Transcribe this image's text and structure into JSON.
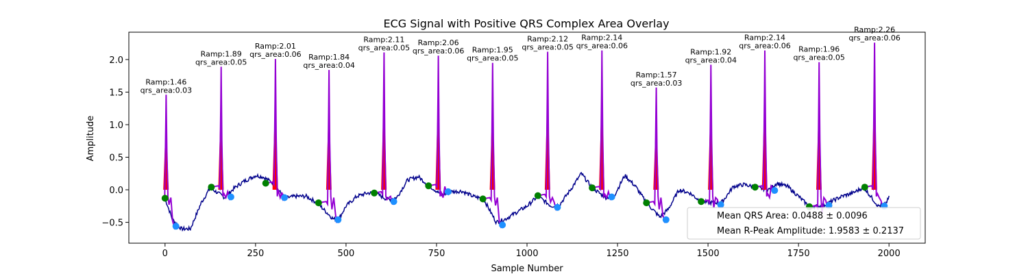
{
  "chart_data": {
    "type": "line",
    "title": "ECG Signal with Positive QRS Complex Area Overlay",
    "xlabel": "Sample Number",
    "ylabel": "Amplitude",
    "xlim": [
      -100,
      2100
    ],
    "ylim": [
      -0.82,
      2.42
    ],
    "x_ticks": [
      0,
      250,
      500,
      750,
      1000,
      1250,
      1500,
      1750,
      2000
    ],
    "y_ticks": [
      -0.5,
      0.0,
      0.5,
      1.0,
      1.5,
      2.0
    ],
    "x_tick_labels": [
      "0",
      "250",
      "500",
      "750",
      "1000",
      "1250",
      "1500",
      "1750",
      "2000"
    ],
    "y_tick_labels": [
      "−0.5",
      "0.0",
      "0.5",
      "1.0",
      "1.5",
      "2.0"
    ],
    "grid": false,
    "legend_position": "lower-right",
    "colors": {
      "signal": "#00008b",
      "qrs_segment": "#9400d3",
      "qrs_area_fill": "#ff0000",
      "onset_marker": "#008000",
      "offset_marker": "#1e90ff"
    },
    "beats": [
      {
        "r_x": 3,
        "r_amp": 1.46,
        "qrs_area": 0.03,
        "onset": [
          0,
          -0.13
        ],
        "offset": [
          30,
          -0.56
        ],
        "amp_label": "Ramp:1.46",
        "area_label": "qrs_area:0.03"
      },
      {
        "r_x": 155,
        "r_amp": 1.89,
        "qrs_area": 0.05,
        "onset": [
          128,
          0.04
        ],
        "offset": [
          182,
          -0.11
        ],
        "amp_label": "Ramp:1.89",
        "area_label": "qrs_area:0.05"
      },
      {
        "r_x": 305,
        "r_amp": 2.01,
        "qrs_area": 0.06,
        "onset": [
          278,
          0.1
        ],
        "offset": [
          330,
          -0.12
        ],
        "amp_label": "Ramp:2.01",
        "area_label": "qrs_area:0.06"
      },
      {
        "r_x": 453,
        "r_amp": 1.84,
        "qrs_area": 0.04,
        "onset": [
          424,
          -0.2
        ],
        "offset": [
          478,
          -0.46
        ],
        "amp_label": "Ramp:1.84",
        "area_label": "qrs_area:0.04"
      },
      {
        "r_x": 605,
        "r_amp": 2.11,
        "qrs_area": 0.05,
        "onset": [
          578,
          -0.05
        ],
        "offset": [
          632,
          -0.18
        ],
        "amp_label": "Ramp:2.11",
        "area_label": "qrs_area:0.05"
      },
      {
        "r_x": 755,
        "r_amp": 2.06,
        "qrs_area": 0.06,
        "onset": [
          728,
          0.06
        ],
        "offset": [
          782,
          -0.03
        ],
        "amp_label": "Ramp:2.06",
        "area_label": "qrs_area:0.06"
      },
      {
        "r_x": 905,
        "r_amp": 1.95,
        "qrs_area": 0.05,
        "onset": [
          878,
          -0.14
        ],
        "offset": [
          932,
          -0.54
        ],
        "amp_label": "Ramp:1.95",
        "area_label": "qrs_area:0.05"
      },
      {
        "r_x": 1057,
        "r_amp": 2.12,
        "qrs_area": 0.05,
        "onset": [
          1030,
          -0.09
        ],
        "offset": [
          1084,
          -0.27
        ],
        "amp_label": "Ramp:2.12",
        "area_label": "qrs_area:0.05"
      },
      {
        "r_x": 1207,
        "r_amp": 2.14,
        "qrs_area": 0.06,
        "onset": [
          1180,
          0.03
        ],
        "offset": [
          1234,
          -0.11
        ],
        "amp_label": "Ramp:2.14",
        "area_label": "qrs_area:0.06"
      },
      {
        "r_x": 1357,
        "r_amp": 1.57,
        "qrs_area": 0.03,
        "onset": [
          1330,
          -0.2
        ],
        "offset": [
          1384,
          -0.46
        ],
        "amp_label": "Ramp:1.57",
        "area_label": "qrs_area:0.03"
      },
      {
        "r_x": 1508,
        "r_amp": 1.92,
        "qrs_area": 0.04,
        "onset": [
          1481,
          -0.18
        ],
        "offset": [
          1535,
          -0.23
        ],
        "amp_label": "Ramp:1.92",
        "area_label": "qrs_area:0.04"
      },
      {
        "r_x": 1657,
        "r_amp": 2.14,
        "qrs_area": 0.06,
        "onset": [
          1630,
          0.04
        ],
        "offset": [
          1684,
          -0.01
        ],
        "amp_label": "Ramp:2.14",
        "area_label": "qrs_area:0.06"
      },
      {
        "r_x": 1807,
        "r_amp": 1.96,
        "qrs_area": 0.05,
        "onset": [
          1780,
          -0.26
        ],
        "offset": [
          1834,
          -0.24
        ],
        "amp_label": "Ramp:1.96",
        "area_label": "qrs_area:0.05"
      },
      {
        "r_x": 1960,
        "r_amp": 2.26,
        "qrs_area": 0.06,
        "onset": [
          1933,
          0.04
        ],
        "offset": [
          1987,
          -0.25
        ],
        "amp_label": "Ramp:2.26",
        "area_label": "qrs_area:0.06"
      }
    ],
    "baseline_x": [
      0,
      20,
      45,
      70,
      100,
      125,
      165,
      190,
      215,
      250,
      270,
      300,
      330,
      360,
      390,
      420,
      465,
      480,
      500,
      530,
      560,
      580,
      615,
      640,
      670,
      700,
      730,
      765,
      790,
      820,
      850,
      880,
      915,
      940,
      970,
      1000,
      1030,
      1067,
      1090,
      1120,
      1150,
      1180,
      1217,
      1240,
      1270,
      1300,
      1330,
      1367,
      1390,
      1420,
      1450,
      1480,
      1518,
      1540,
      1570,
      1600,
      1630,
      1667,
      1690,
      1720,
      1750,
      1780,
      1817,
      1840,
      1870,
      1900,
      1930,
      1970,
      1990,
      2000
    ],
    "baseline_y": [
      -0.13,
      -0.45,
      -0.6,
      -0.6,
      -0.2,
      0.03,
      -0.12,
      0.02,
      0.12,
      0.22,
      0.2,
      0.1,
      -0.13,
      -0.1,
      -0.1,
      -0.2,
      -0.45,
      -0.45,
      -0.25,
      -0.1,
      -0.05,
      -0.05,
      -0.15,
      -0.12,
      0.15,
      0.2,
      0.06,
      -0.08,
      -0.03,
      -0.02,
      -0.1,
      -0.14,
      -0.5,
      -0.45,
      -0.35,
      -0.25,
      -0.1,
      -0.25,
      -0.23,
      0.0,
      0.25,
      0.03,
      -0.12,
      -0.1,
      0.22,
      0.05,
      -0.2,
      -0.42,
      -0.3,
      0.0,
      -0.05,
      -0.18,
      -0.2,
      -0.18,
      0.05,
      0.08,
      0.04,
      0.0,
      0.1,
      0.05,
      -0.1,
      -0.26,
      -0.25,
      -0.18,
      -0.1,
      -0.05,
      0.04,
      -0.25,
      -0.22,
      -0.12
    ],
    "legend": [
      "Mean QRS Area: 0.0488 ± 0.0096",
      "Mean R-Peak Amplitude: 1.9583 ± 0.2137"
    ]
  }
}
